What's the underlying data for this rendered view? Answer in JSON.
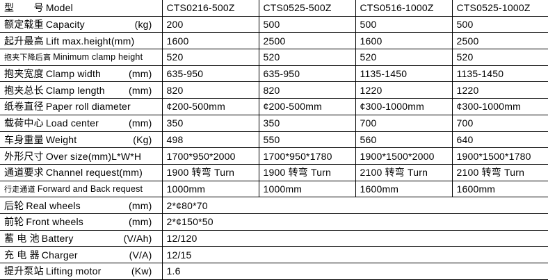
{
  "header": {
    "label": {
      "cn": "型　　号",
      "en": "Model",
      "unit": ""
    },
    "models": [
      "CTS0216-500Z",
      "CTS0525-500Z",
      "CTS0516-1000Z",
      "CTS0525-1000Z"
    ]
  },
  "rows": [
    {
      "cn": "额定载重",
      "en": "Capacity",
      "unit": "(kg)",
      "values": [
        "200",
        "500",
        "500",
        "500"
      ]
    },
    {
      "cn": "起升最高",
      "en": "Lift max.height(mm)",
      "unit": "",
      "values": [
        "1600",
        "2500",
        "1600",
        "2500"
      ]
    },
    {
      "cn": "抱夹下降后高",
      "en": "Minimum clamp height",
      "unit": "",
      "small": true,
      "values": [
        "520",
        "520",
        "520",
        "520"
      ]
    },
    {
      "cn": "抱夹宽度",
      "en": "Clamp width",
      "unit": "(mm)",
      "values": [
        "635-950",
        "635-950",
        "1135-1450",
        "1135-1450"
      ]
    },
    {
      "cn": "抱夹总长",
      "en": "Clamp length",
      "unit": "(mm)",
      "values": [
        "820",
        "820",
        "1220",
        "1220"
      ]
    },
    {
      "cn": "纸卷直径",
      "en": "Paper roll diameter",
      "unit": "",
      "values": [
        "¢200-500mm",
        "¢200-500mm",
        "¢300-1000mm",
        "¢300-1000mm"
      ]
    },
    {
      "cn": "载荷中心",
      "en": "Load center",
      "unit": "(mm)",
      "values": [
        "350",
        "350",
        "700",
        "700"
      ]
    },
    {
      "cn": "车身重量",
      "en": "Weight",
      "unit": "(Kg)",
      "values": [
        "498",
        "550",
        "560",
        "640"
      ]
    },
    {
      "cn": "外形尺寸",
      "en": "Over size(mm)L*W*H",
      "unit": "",
      "values": [
        "1700*950*2000",
        "1700*950*1780",
        "1900*1500*2000",
        "1900*1500*1780"
      ]
    },
    {
      "cn": "通道要求",
      "en": "Channel request(mm)",
      "unit": "",
      "values": [
        "1900 转弯 Turn",
        "1900 转弯 Turn",
        "2100 转弯 Turn",
        "2100 转弯 Turn"
      ]
    },
    {
      "cn": "行走通道",
      "en": "Forward and Back request",
      "unit": "",
      "small": true,
      "values": [
        "1000mm",
        "1000mm",
        "1600mm",
        "1600mm"
      ]
    },
    {
      "cn": "后轮",
      "en": "Real wheels",
      "unit": "(mm)",
      "values": [
        "2*¢80*70"
      ]
    },
    {
      "cn": "前轮",
      "en": "Front wheels",
      "unit": "(mm)",
      "values": [
        "2*¢150*50"
      ]
    },
    {
      "cn": "蓄 电 池",
      "en": "Battery",
      "unit": "(V/Ah)",
      "values": [
        "12/120"
      ]
    },
    {
      "cn": "充 电 器",
      "en": "Charger",
      "unit": "(V/A)",
      "values": [
        "12/15"
      ]
    },
    {
      "cn": "提升泵站",
      "en": "Lifting motor",
      "unit": "(Kw)",
      "values": [
        "1.6"
      ]
    }
  ]
}
